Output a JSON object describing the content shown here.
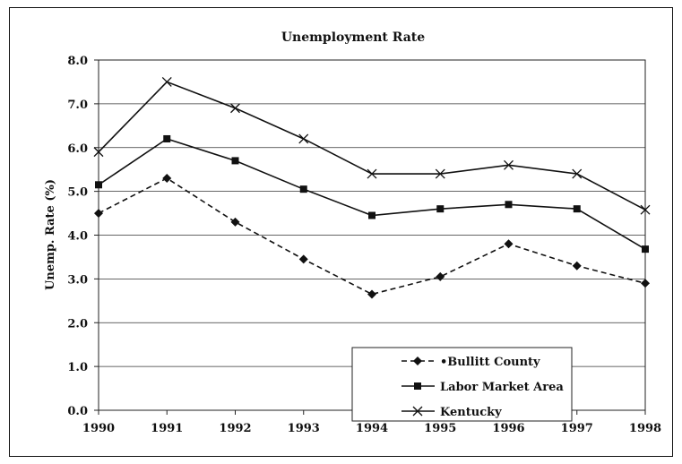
{
  "chart_data": {
    "type": "line",
    "title": "Unemployment Rate",
    "xlabel": "",
    "ylabel": "Unemp. Rate (%)",
    "categories": [
      "1990",
      "1991",
      "1992",
      "1993",
      "1994",
      "1995",
      "1996",
      "1997",
      "1998"
    ],
    "ylim": [
      0,
      8
    ],
    "yticks": [
      "0.0",
      "1.0",
      "2.0",
      "3.0",
      "4.0",
      "5.0",
      "6.0",
      "7.0",
      "8.0"
    ],
    "grid": true,
    "legend_position": "bottom-right",
    "series": [
      {
        "name": "Bullitt County",
        "legend_label": "•Bullitt County",
        "marker": "diamond",
        "line_style": "dashed",
        "color": "#111111",
        "values": [
          4.5,
          5.3,
          4.3,
          3.45,
          2.65,
          3.05,
          3.8,
          3.3,
          2.9
        ]
      },
      {
        "name": "Labor Market Area",
        "legend_label": "Labor Market Area",
        "marker": "square",
        "line_style": "solid",
        "color": "#111111",
        "values": [
          5.15,
          6.2,
          5.7,
          5.05,
          4.45,
          4.6,
          4.7,
          4.6,
          3.68
        ]
      },
      {
        "name": "Kentucky",
        "legend_label": "Kentucky",
        "marker": "x",
        "line_style": "solid",
        "color": "#111111",
        "values": [
          5.9,
          7.5,
          6.9,
          6.2,
          5.4,
          5.4,
          5.6,
          5.4,
          4.58
        ]
      }
    ]
  }
}
